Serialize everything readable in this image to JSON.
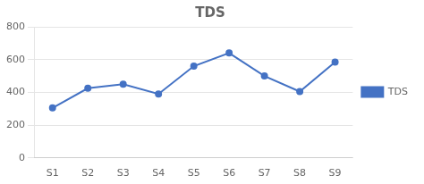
{
  "chart_data": {
    "type": "line",
    "title": "TDS",
    "categories": [
      "S1",
      "S2",
      "S3",
      "S4",
      "S5",
      "S6",
      "S7",
      "S8",
      "S9"
    ],
    "series": [
      {
        "name": "TDS",
        "color": "#4472C4",
        "values": [
          305,
          425,
          450,
          390,
          560,
          640,
          500,
          405,
          585
        ]
      }
    ],
    "ylim": [
      0,
      800
    ],
    "yticks": [
      0,
      200,
      400,
      600,
      800
    ],
    "grid": true,
    "legend": "right",
    "marker": "circle"
  }
}
